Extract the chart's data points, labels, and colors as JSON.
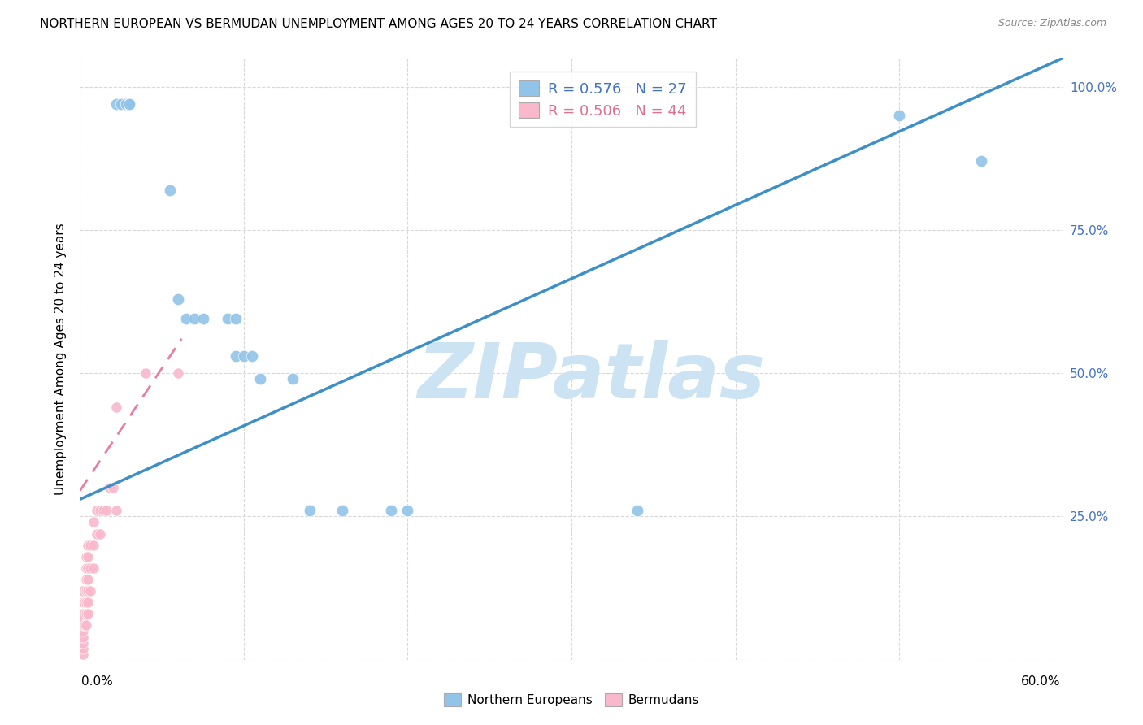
{
  "title": "NORTHERN EUROPEAN VS BERMUDAN UNEMPLOYMENT AMONG AGES 20 TO 24 YEARS CORRELATION CHART",
  "source": "Source: ZipAtlas.com",
  "ylabel": "Unemployment Among Ages 20 to 24 years",
  "blue_R": 0.576,
  "blue_N": 27,
  "pink_R": 0.506,
  "pink_N": 44,
  "blue_color": "#91c4e8",
  "pink_color": "#f9b8cb",
  "blue_line_color": "#3d8fc7",
  "pink_line_color": "#e87fa0",
  "watermark": "ZIPatlas",
  "watermark_color": "#cce3f4",
  "xlim": [
    0.0,
    0.6
  ],
  "ylim": [
    0.0,
    1.05
  ],
  "blue_line_x0": 0.0,
  "blue_line_y0": 0.28,
  "blue_line_x1": 0.6,
  "blue_line_y1": 1.05,
  "pink_line_x0": 0.0,
  "pink_line_y0": 0.295,
  "pink_line_x1": 0.062,
  "pink_line_y1": 0.56,
  "blue_points_x": [
    0.022,
    0.025,
    0.028,
    0.03,
    0.03,
    0.03,
    0.03,
    0.03,
    0.055,
    0.06,
    0.065,
    0.07,
    0.075,
    0.09,
    0.095,
    0.095,
    0.1,
    0.105,
    0.11,
    0.13,
    0.14,
    0.16,
    0.19,
    0.2,
    0.34,
    0.5,
    0.55
  ],
  "blue_points_y": [
    0.97,
    0.97,
    0.97,
    0.97,
    0.97,
    0.97,
    0.97,
    0.97,
    0.82,
    0.63,
    0.595,
    0.595,
    0.595,
    0.595,
    0.595,
    0.53,
    0.53,
    0.53,
    0.49,
    0.49,
    0.26,
    0.26,
    0.26,
    0.26,
    0.26,
    0.95,
    0.87
  ],
  "pink_points_x": [
    0.002,
    0.002,
    0.002,
    0.002,
    0.002,
    0.002,
    0.002,
    0.002,
    0.002,
    0.002,
    0.003,
    0.003,
    0.004,
    0.004,
    0.004,
    0.004,
    0.004,
    0.004,
    0.004,
    0.005,
    0.005,
    0.005,
    0.005,
    0.005,
    0.005,
    0.005,
    0.006,
    0.006,
    0.006,
    0.008,
    0.008,
    0.008,
    0.01,
    0.01,
    0.012,
    0.012,
    0.014,
    0.016,
    0.018,
    0.02,
    0.022,
    0.022,
    0.04,
    0.06
  ],
  "pink_points_y": [
    0.01,
    0.02,
    0.03,
    0.04,
    0.05,
    0.06,
    0.07,
    0.08,
    0.1,
    0.12,
    0.06,
    0.1,
    0.06,
    0.08,
    0.1,
    0.12,
    0.14,
    0.16,
    0.18,
    0.08,
    0.1,
    0.12,
    0.14,
    0.16,
    0.18,
    0.2,
    0.12,
    0.16,
    0.2,
    0.16,
    0.2,
    0.24,
    0.22,
    0.26,
    0.22,
    0.26,
    0.26,
    0.26,
    0.3,
    0.3,
    0.26,
    0.44,
    0.5,
    0.5
  ]
}
